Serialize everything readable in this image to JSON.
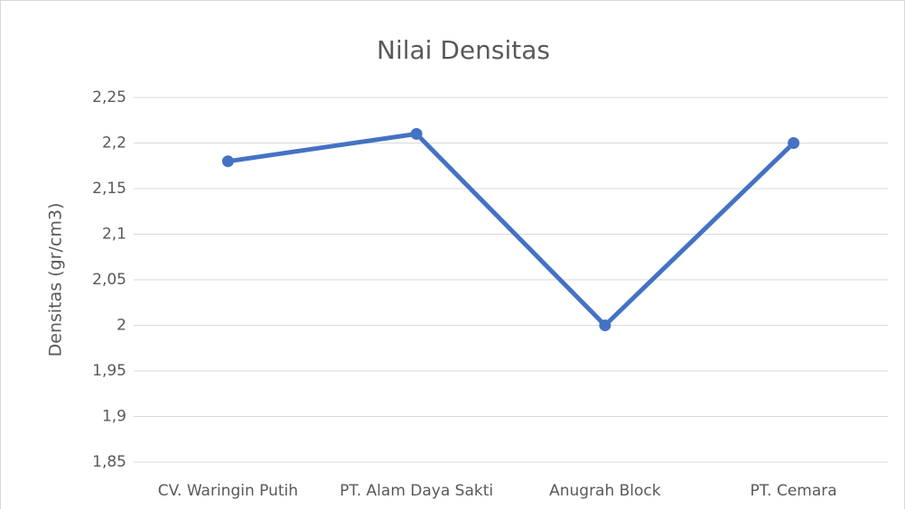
{
  "chart_data": {
    "type": "line",
    "title": "Nilai Densitas",
    "y_label": "Densitas (gr/cm3)",
    "categories": [
      "CV. Waringin Putih",
      "PT. Alam Daya Sakti",
      "Anugrah Block",
      "PT. Cemara"
    ],
    "values": [
      2.18,
      2.21,
      2.0,
      2.2
    ],
    "color": "#4472c4",
    "ylim": [
      1.85,
      2.25
    ],
    "yticks": [
      {
        "value": 1.85,
        "label": "1,85"
      },
      {
        "value": 1.9,
        "label": "1,9"
      },
      {
        "value": 1.95,
        "label": "1,95"
      },
      2,
      {
        "value": 2.05,
        "label": "2,05"
      },
      {
        "value": 2.1,
        "label": "2,1"
      },
      {
        "value": 2.15,
        "label": "2,15"
      },
      {
        "value": 2.2,
        "label": "2,2"
      },
      {
        "value": 2.25,
        "label": "2,25"
      }
    ],
    "grid": true
  }
}
